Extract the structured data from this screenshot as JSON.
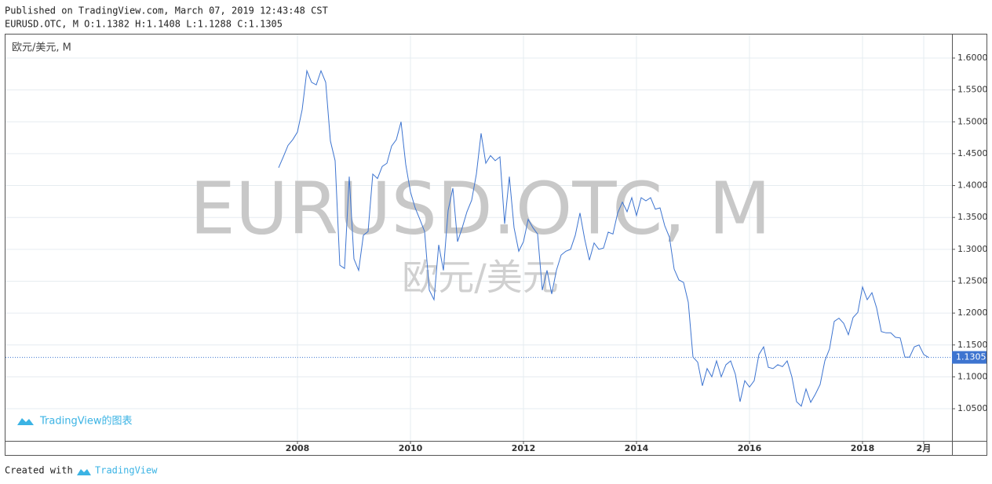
{
  "header": {
    "published": "Published on TradingView.com, March 07, 2019 12:43:48 CST",
    "symbol_info": "EURUSD.OTC, M O:1.1382 H:1.1408 L:1.1288 C:1.1305"
  },
  "chart_data": {
    "type": "line",
    "title": "欧元/美元, M",
    "watermark": {
      "symbol": "EURUSD.OTC, M",
      "description": "欧元/美元"
    },
    "logo_text": "TradingView的图表",
    "color": "#3d74d0",
    "grid": true,
    "last_price": 1.1305,
    "x": [
      "2007-09",
      "2007-10",
      "2007-11",
      "2007-12",
      "2008-01",
      "2008-02",
      "2008-03",
      "2008-04",
      "2008-05",
      "2008-06",
      "2008-07",
      "2008-08",
      "2008-09",
      "2008-10",
      "2008-11",
      "2008-12",
      "2009-01",
      "2009-02",
      "2009-03",
      "2009-04",
      "2009-05",
      "2009-06",
      "2009-07",
      "2009-08",
      "2009-09",
      "2009-10",
      "2009-11",
      "2009-12",
      "2010-01",
      "2010-02",
      "2010-03",
      "2010-04",
      "2010-05",
      "2010-06",
      "2010-07",
      "2010-08",
      "2010-09",
      "2010-10",
      "2010-11",
      "2010-12",
      "2011-01",
      "2011-02",
      "2011-03",
      "2011-04",
      "2011-05",
      "2011-06",
      "2011-07",
      "2011-08",
      "2011-09",
      "2011-10",
      "2011-11",
      "2011-12",
      "2012-01",
      "2012-02",
      "2012-03",
      "2012-04",
      "2012-05",
      "2012-06",
      "2012-07",
      "2012-08",
      "2012-09",
      "2012-10",
      "2012-11",
      "2012-12",
      "2013-01",
      "2013-02",
      "2013-03",
      "2013-04",
      "2013-05",
      "2013-06",
      "2013-07",
      "2013-08",
      "2013-09",
      "2013-10",
      "2013-11",
      "2013-12",
      "2014-01",
      "2014-02",
      "2014-03",
      "2014-04",
      "2014-05",
      "2014-06",
      "2014-07",
      "2014-08",
      "2014-09",
      "2014-10",
      "2014-11",
      "2014-12",
      "2015-01",
      "2015-02",
      "2015-03",
      "2015-04",
      "2015-05",
      "2015-06",
      "2015-07",
      "2015-08",
      "2015-09",
      "2015-10",
      "2015-11",
      "2015-12",
      "2016-01",
      "2016-02",
      "2016-03",
      "2016-04",
      "2016-05",
      "2016-06",
      "2016-07",
      "2016-08",
      "2016-09",
      "2016-10",
      "2016-11",
      "2016-12",
      "2017-01",
      "2017-02",
      "2017-03",
      "2017-04",
      "2017-05",
      "2017-06",
      "2017-07",
      "2017-08",
      "2017-09",
      "2017-10",
      "2017-11",
      "2017-12",
      "2018-01",
      "2018-02",
      "2018-03",
      "2018-04",
      "2018-05",
      "2018-06",
      "2018-07",
      "2018-08",
      "2018-09",
      "2018-10",
      "2018-11",
      "2018-12",
      "2019-01",
      "2019-02",
      "2019-03"
    ],
    "values": [
      1.428,
      1.445,
      1.463,
      1.472,
      1.484,
      1.519,
      1.58,
      1.562,
      1.558,
      1.58,
      1.562,
      1.47,
      1.439,
      1.275,
      1.27,
      1.414,
      1.285,
      1.267,
      1.322,
      1.328,
      1.418,
      1.411,
      1.43,
      1.435,
      1.462,
      1.472,
      1.5,
      1.433,
      1.39,
      1.365,
      1.347,
      1.328,
      1.236,
      1.221,
      1.307,
      1.267,
      1.361,
      1.396,
      1.312,
      1.334,
      1.359,
      1.377,
      1.418,
      1.482,
      1.435,
      1.447,
      1.439,
      1.445,
      1.34,
      1.414,
      1.334,
      1.297,
      1.312,
      1.347,
      1.334,
      1.324,
      1.236,
      1.267,
      1.23,
      1.267,
      1.291,
      1.297,
      1.3,
      1.322,
      1.357,
      1.316,
      1.283,
      1.31,
      1.3,
      1.302,
      1.327,
      1.324,
      1.357,
      1.374,
      1.359,
      1.381,
      1.353,
      1.381,
      1.376,
      1.381,
      1.363,
      1.365,
      1.337,
      1.319,
      1.269,
      1.252,
      1.248,
      1.217,
      1.131,
      1.123,
      1.086,
      1.113,
      1.1,
      1.125,
      1.1,
      1.119,
      1.125,
      1.104,
      1.061,
      1.094,
      1.084,
      1.094,
      1.135,
      1.147,
      1.115,
      1.113,
      1.119,
      1.116,
      1.125,
      1.1,
      1.061,
      1.054,
      1.081,
      1.06,
      1.073,
      1.088,
      1.125,
      1.144,
      1.187,
      1.192,
      1.184,
      1.166,
      1.193,
      1.201,
      1.241,
      1.221,
      1.232,
      1.208,
      1.171,
      1.169,
      1.169,
      1.162,
      1.161,
      1.131,
      1.131,
      1.147,
      1.15,
      1.135,
      1.1305
    ],
    "xlim": [
      "2002-11",
      "2019-08"
    ],
    "xticks": [
      {
        "value": "2008-01",
        "label": "2008"
      },
      {
        "value": "2010-01",
        "label": "2010"
      },
      {
        "value": "2012-01",
        "label": "2012"
      },
      {
        "value": "2014-01",
        "label": "2014"
      },
      {
        "value": "2016-01",
        "label": "2016"
      },
      {
        "value": "2018-01",
        "label": "2018"
      },
      {
        "value": "2019-02",
        "label": "2月"
      }
    ],
    "ylim": [
      0.9996,
      1.6369
    ],
    "yticks": [
      {
        "value": 1.05,
        "label": "1.0500"
      },
      {
        "value": 1.1,
        "label": "1.1000"
      },
      {
        "value": 1.15,
        "label": "1.1500"
      },
      {
        "value": 1.2,
        "label": "1.2000"
      },
      {
        "value": 1.25,
        "label": "1.2500"
      },
      {
        "value": 1.3,
        "label": "1.3000"
      },
      {
        "value": 1.35,
        "label": "1.3500"
      },
      {
        "value": 1.4,
        "label": "1.4000"
      },
      {
        "value": 1.45,
        "label": "1.4500"
      },
      {
        "value": 1.5,
        "label": "1.5000"
      },
      {
        "value": 1.55,
        "label": "1.5500"
      },
      {
        "value": 1.6,
        "label": "1.6000"
      }
    ]
  },
  "footer": {
    "created_with": "Created with",
    "brand": "TradingView"
  }
}
